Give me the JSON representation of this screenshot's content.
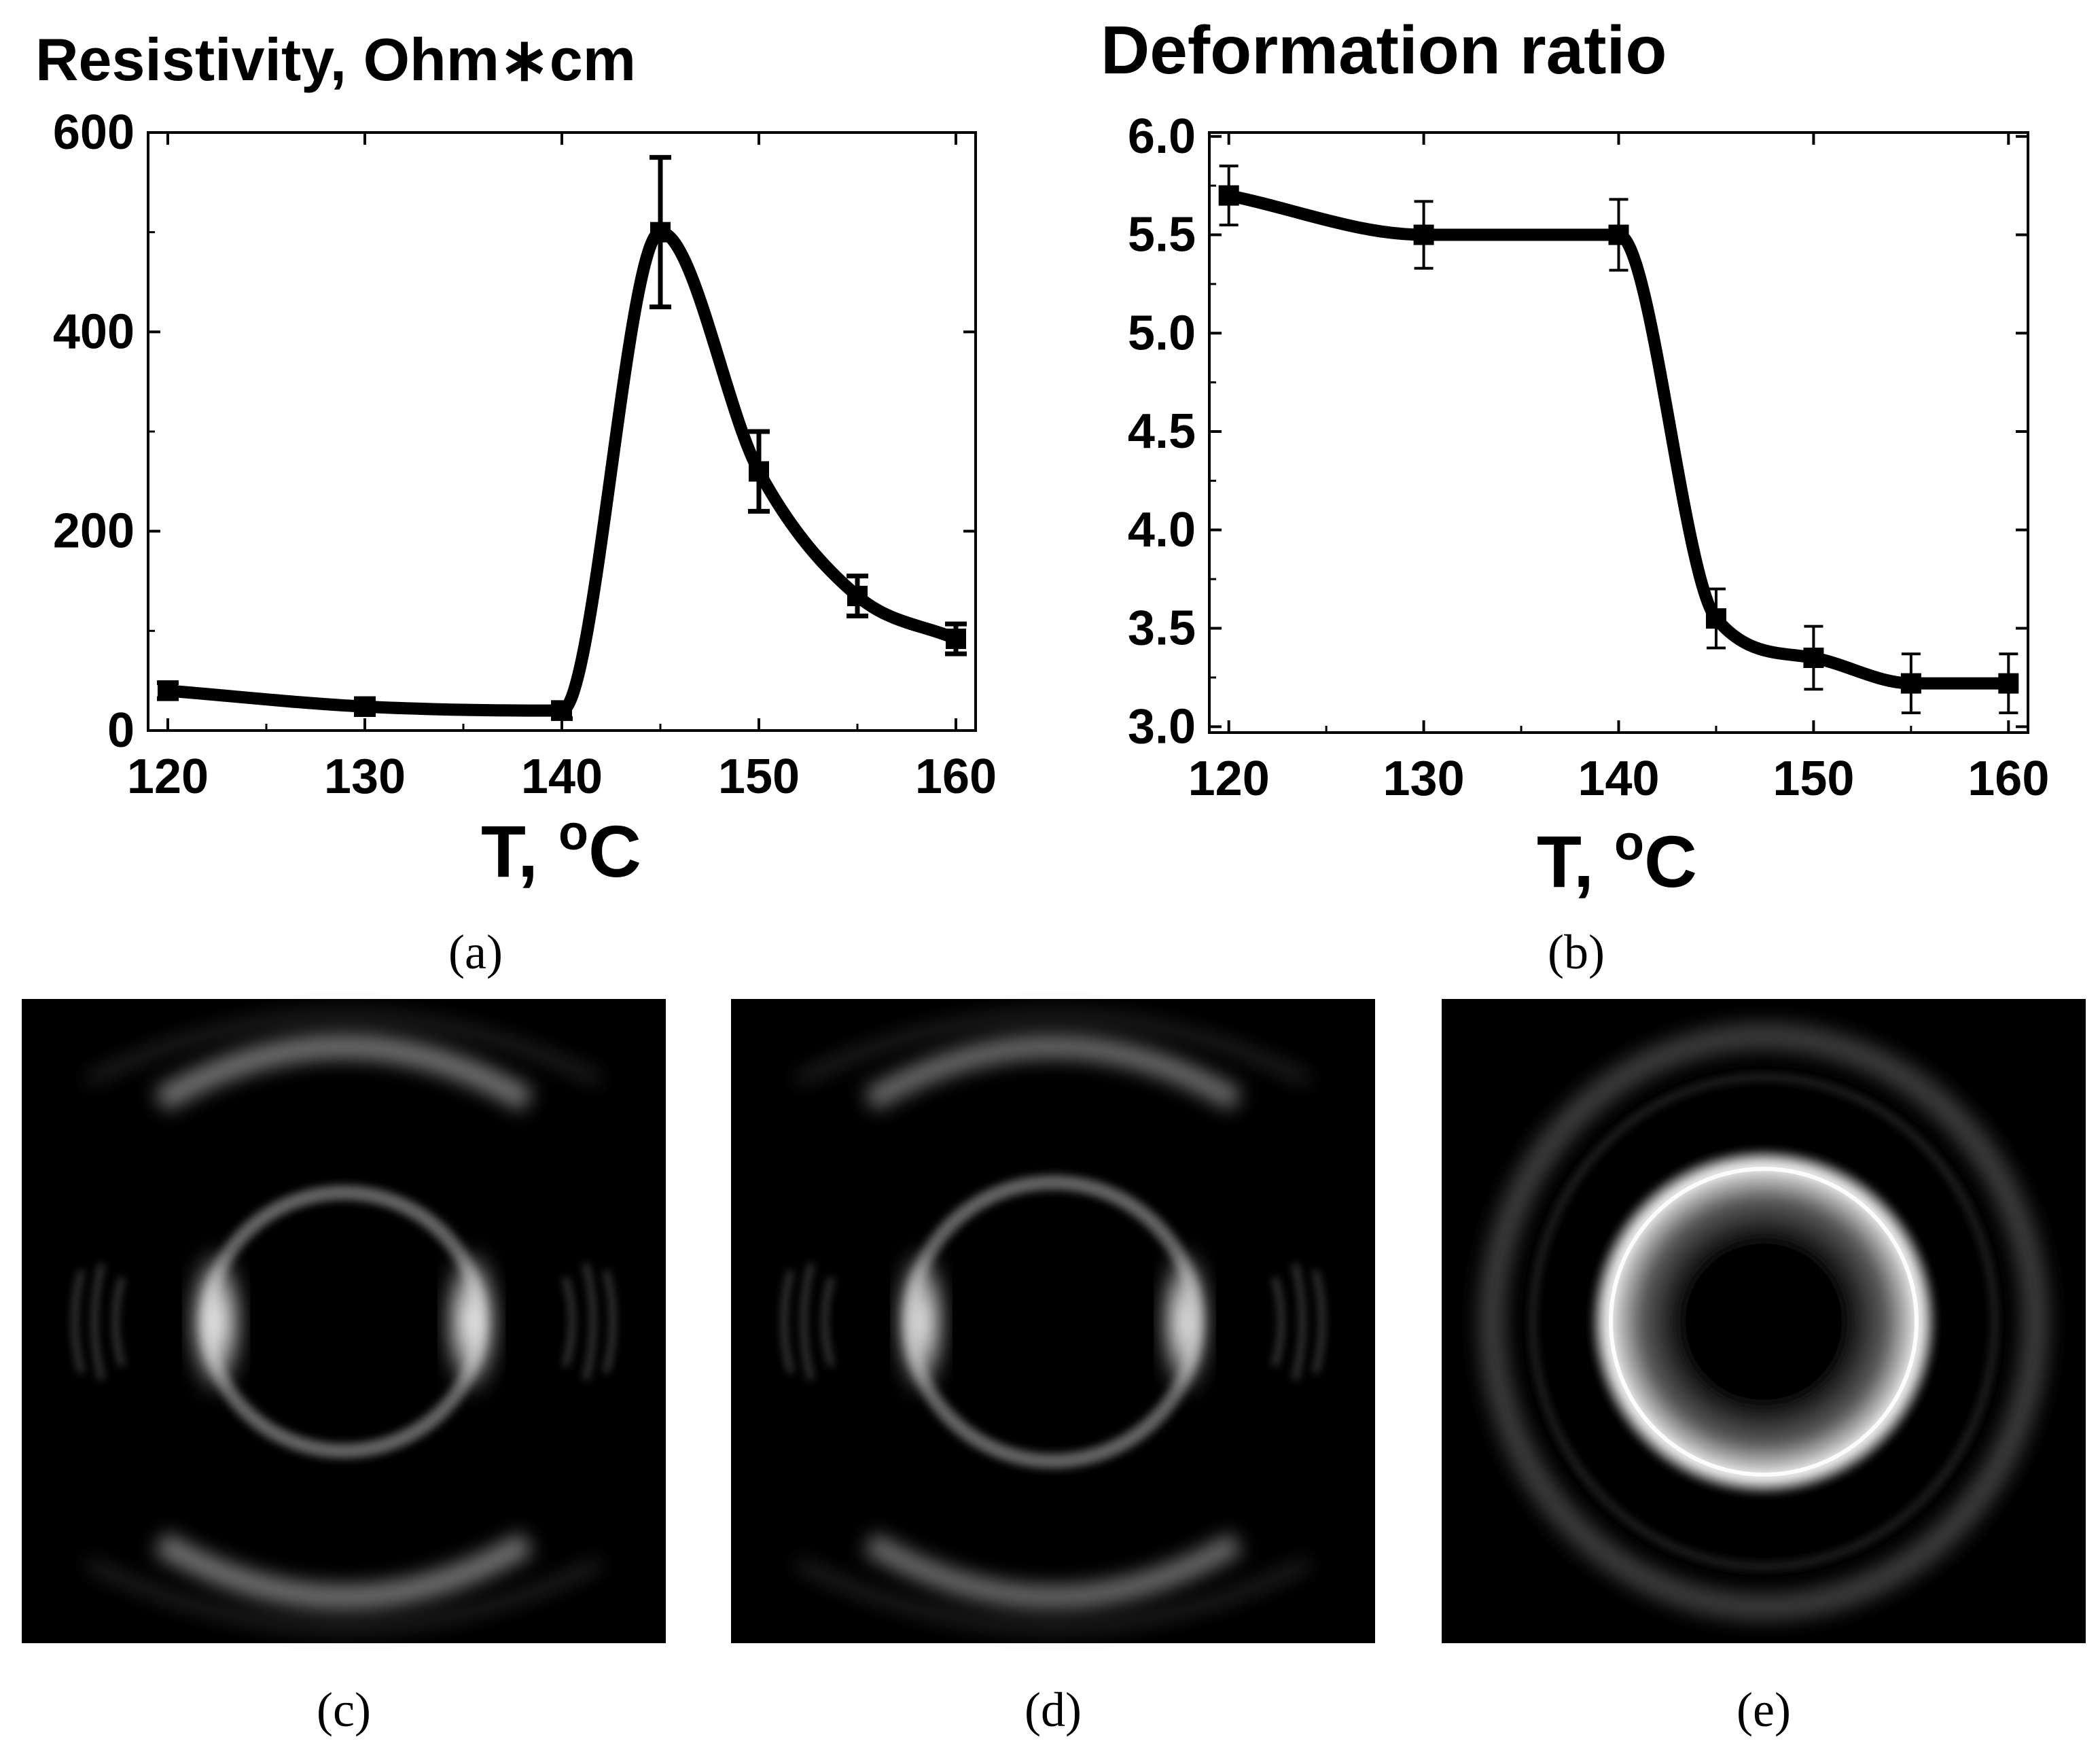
{
  "colors": {
    "line": "#000000",
    "background": "#ffffff",
    "pattern_bg": "#000000"
  },
  "chart_data": [
    {
      "type": "line",
      "panel": "a",
      "title": "Resistivity, Ohm∗cm",
      "xlabel": "T, °C",
      "xlabel_main": "T, ",
      "xlabel_sup": "o",
      "xlabel_unit": "C",
      "ylabel": "",
      "xlim": [
        119,
        161
      ],
      "ylim": [
        0,
        600
      ],
      "xticks": [
        120,
        130,
        140,
        150,
        160
      ],
      "yticks": [
        0,
        200,
        400,
        600
      ],
      "ytick_labels": [
        "0",
        "200",
        "400",
        "600"
      ],
      "x": [
        120,
        130,
        140,
        145,
        150,
        155,
        160
      ],
      "y": [
        40,
        24,
        20,
        500,
        260,
        135,
        92
      ],
      "yerr": [
        8,
        8,
        8,
        75,
        40,
        20,
        15
      ],
      "caption": "(a)"
    },
    {
      "type": "line",
      "panel": "b",
      "title": "Deformation ratio",
      "xlabel": "T, °C",
      "xlabel_main": "T, ",
      "xlabel_sup": "o",
      "xlabel_unit": "C",
      "ylabel": "",
      "xlim": [
        119,
        161
      ],
      "ylim": [
        2.97,
        6.02
      ],
      "xticks": [
        120,
        130,
        140,
        150,
        160
      ],
      "yticks": [
        3.0,
        3.5,
        4.0,
        4.5,
        5.0,
        5.5,
        6.0
      ],
      "ytick_labels": [
        "3.0",
        "3.5",
        "4.0",
        "4.5",
        "5.0",
        "5.5",
        "6.0"
      ],
      "x": [
        120,
        130,
        140,
        145,
        150,
        155,
        160
      ],
      "y": [
        5.7,
        5.5,
        5.5,
        3.55,
        3.35,
        3.22,
        3.22
      ],
      "yerr": [
        0.15,
        0.17,
        0.18,
        0.15,
        0.16,
        0.15,
        0.15
      ],
      "caption": "(b)"
    }
  ],
  "patterns": [
    {
      "caption": "(c)",
      "description": ""
    },
    {
      "caption": "(d)",
      "description": ""
    },
    {
      "caption": "(e)",
      "description": ""
    }
  ]
}
